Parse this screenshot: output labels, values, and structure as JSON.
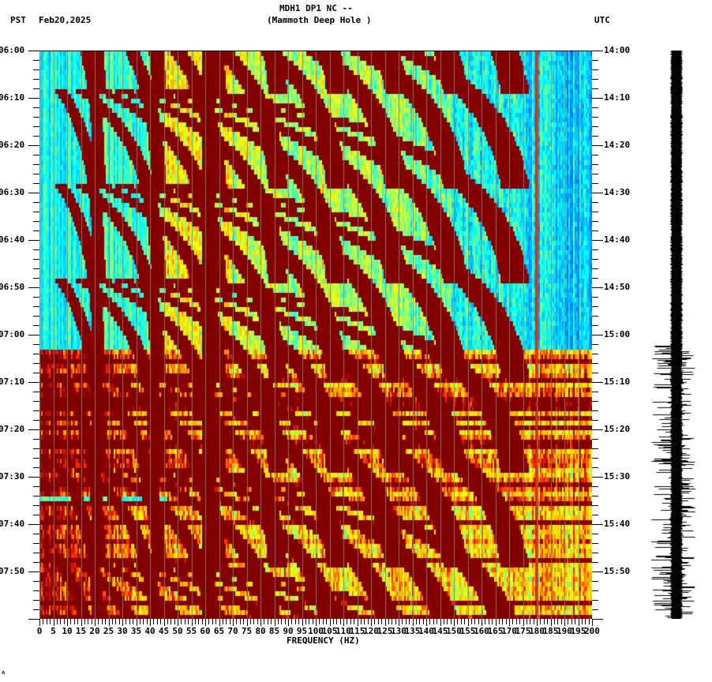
{
  "header": {
    "station_line": "MDH1 DP1 NC --",
    "location_line": "(Mammoth Deep Hole )",
    "left_tz": "PST",
    "date": "Feb20,2025",
    "right_tz": "UTC"
  },
  "chart_data": {
    "type": "heatmap",
    "title": "MDH1 DP1 NC -- (Mammoth Deep Hole )",
    "subtitle": "Feb20,2025",
    "xlabel": "FREQUENCY (HZ)",
    "ylabel_left": "PST",
    "ylabel_right": "UTC",
    "xlim": [
      0,
      200
    ],
    "x_ticks": [
      "0",
      "5",
      "10",
      "15",
      "20",
      "25",
      "30",
      "35",
      "40",
      "45",
      "50",
      "55",
      "60",
      "65",
      "70",
      "75",
      "80",
      "85",
      "90",
      "95",
      "100",
      "105",
      "110",
      "115",
      "120",
      "125",
      "130",
      "135",
      "140",
      "145",
      "150",
      "155",
      "160",
      "165",
      "170",
      "175",
      "180",
      "185",
      "190",
      "195",
      "200"
    ],
    "y_ticks_left": [
      "06:00",
      "06:10",
      "06:20",
      "06:30",
      "06:40",
      "06:50",
      "07:00",
      "07:10",
      "07:20",
      "07:30",
      "07:40",
      "07:50"
    ],
    "y_ticks_right": [
      "14:00",
      "14:10",
      "14:20",
      "14:30",
      "14:40",
      "14:50",
      "15:00",
      "15:10",
      "15:20",
      "15:30",
      "15:40",
      "15:50"
    ],
    "time_range_pst": [
      "06:00",
      "08:00"
    ],
    "time_range_utc": [
      "14:00",
      "16:00"
    ],
    "grid": "vertical gray lines every 5 Hz",
    "colormap": [
      "#0000ff",
      "#00ffff",
      "#80ff80",
      "#ffff00",
      "#ff8000",
      "#ff0000",
      "#800000"
    ],
    "features": [
      "Persistent strong line at 60 Hz",
      "Weaker persistent line near 180 Hz",
      "Repeating curved harmonic chirp tracks (~20 min periodicity) sweeping from low to high frequency",
      "Low-energy (blue) background below ~45 Hz from 06:00 to ~07:03 PST",
      "Elevated broadband energy with horizontal red bands after ~07:03 PST",
      "Brief low-energy gap near 07:33 PST below ~23 Hz"
    ]
  },
  "seismogram": {
    "label": "waveform trace",
    "note": "narrow until ~07:03 PST, larger amplitude spikes afterward"
  },
  "footer_mark": "..."
}
